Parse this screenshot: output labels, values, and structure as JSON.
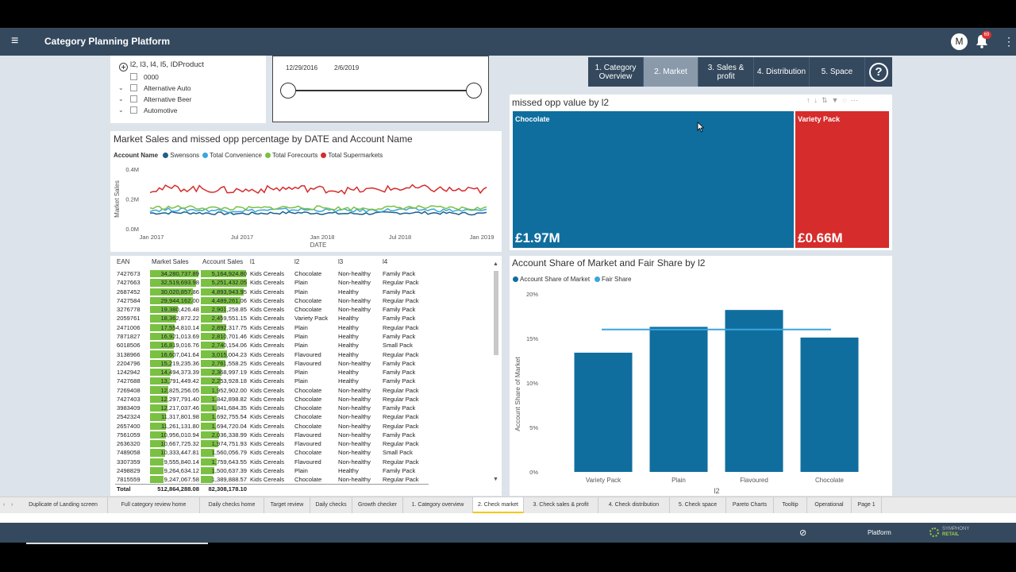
{
  "app": {
    "title": "Category Planning Platform",
    "avatar": "M",
    "notifications": "69"
  },
  "slicer_hierarchy": {
    "header": "l2, l3, l4, l5, IDProduct",
    "items": [
      "0000",
      "Alternative Auto",
      "Alternative Beer",
      "Automotive"
    ]
  },
  "slicer_date": {
    "start": "12/29/2016",
    "end": "2/6/2019"
  },
  "nav": {
    "buttons": [
      "1. Category Overview",
      "2. Market",
      "3. Sales & profit",
      "4. Distribution",
      "5. Space"
    ],
    "active": "2. Market",
    "help": "?"
  },
  "line_chart": {
    "title": "Market Sales and missed opp percentage by DATE and Account Name",
    "legend_title": "Account Name",
    "chart_data": {
      "type": "line",
      "xlabel": "DATE",
      "ylabel": "Market Sales",
      "x_ticks": [
        "Jan 2017",
        "Jul 2017",
        "Jan 2018",
        "Jul 2018",
        "Jan 2019"
      ],
      "y_ticks": [
        "0.4M",
        "0.2M",
        "0.0M"
      ],
      "ylim": [
        0,
        400000
      ],
      "series": [
        {
          "name": "Swensons",
          "color": "#1f5f8b",
          "approx_level": 105000
        },
        {
          "name": "Total Convenience",
          "color": "#3aa6dd",
          "approx_level": 125000
        },
        {
          "name": "Total Forecourts",
          "color": "#7ac143",
          "approx_level": 140000
        },
        {
          "name": "Total Supermarkets",
          "color": "#d62c2c",
          "approx_level": 265000
        }
      ]
    }
  },
  "treemap": {
    "title": "missed opp value by l2",
    "cells": [
      {
        "label": "Chocolate",
        "value": "£1.97M",
        "color": "#0f6e9e"
      },
      {
        "label": "Variety Pack",
        "value": "£0.66M",
        "color": "#d62c2c"
      }
    ]
  },
  "table": {
    "headers": [
      "EAN",
      "Market Sales",
      "Account Sales",
      "l1",
      "l2",
      "l3",
      "l4"
    ],
    "rows": [
      [
        "7427673",
        "34,280,737.89",
        "5,164,924.80",
        "Kids Cereals",
        "Chocolate",
        "Non-healthy",
        "Family Pack"
      ],
      [
        "7427663",
        "32,519,693.98",
        "5,251,432.05",
        "Kids Cereals",
        "Plain",
        "Non-healthy",
        "Regular Pack"
      ],
      [
        "2687452",
        "30,020,857.86",
        "4,893,943.95",
        "Kids Cereals",
        "Plain",
        "Healthy",
        "Family Pack"
      ],
      [
        "7427584",
        "29,944,162.00",
        "4,489,261.06",
        "Kids Cereals",
        "Chocolate",
        "Non-healthy",
        "Regular Pack"
      ],
      [
        "3276778",
        "19,380,426.48",
        "2,901,258.85",
        "Kids Cereals",
        "Chocolate",
        "Non-healthy",
        "Family Pack"
      ],
      [
        "2059761",
        "18,362,872.22",
        "2,459,551.15",
        "Kids Cereals",
        "Variety Pack",
        "Healthy",
        "Family Pack"
      ],
      [
        "2471006",
        "17,554,810.14",
        "2,892,317.75",
        "Kids Cereals",
        "Plain",
        "Healthy",
        "Regular Pack"
      ],
      [
        "7871827",
        "16,921,013.69",
        "2,810,701.46",
        "Kids Cereals",
        "Plain",
        "Healthy",
        "Family Pack"
      ],
      [
        "6018506",
        "16,819,016.76",
        "2,740,154.06",
        "Kids Cereals",
        "Plain",
        "Healthy",
        "Small Pack"
      ],
      [
        "3138966",
        "16,607,041.64",
        "3,015,004.23",
        "Kids Cereals",
        "Flavoured",
        "Healthy",
        "Regular Pack"
      ],
      [
        "2204796",
        "15,219,235.36",
        "2,761,558.25",
        "Kids Cereals",
        "Flavoured",
        "Non-healthy",
        "Family Pack"
      ],
      [
        "1242942",
        "14,494,373.39",
        "2,368,997.19",
        "Kids Cereals",
        "Plain",
        "Healthy",
        "Family Pack"
      ],
      [
        "7427688",
        "13,791,449.42",
        "2,253,928.18",
        "Kids Cereals",
        "Plain",
        "Healthy",
        "Family Pack"
      ],
      [
        "7269408",
        "12,825,256.05",
        "1,952,902.00",
        "Kids Cereals",
        "Chocolate",
        "Non-healthy",
        "Regular Pack"
      ],
      [
        "7427403",
        "12,297,791.40",
        "1,842,898.82",
        "Kids Cereals",
        "Chocolate",
        "Non-healthy",
        "Regular Pack"
      ],
      [
        "3983409",
        "12,217,037.46",
        "1,841,684.35",
        "Kids Cereals",
        "Chocolate",
        "Non-healthy",
        "Family Pack"
      ],
      [
        "2542324",
        "11,317,801.98",
        "1,692,755.54",
        "Kids Cereals",
        "Chocolate",
        "Non-healthy",
        "Regular Pack"
      ],
      [
        "2657400",
        "11,261,131.80",
        "1,694,720.04",
        "Kids Cereals",
        "Chocolate",
        "Non-healthy",
        "Regular Pack"
      ],
      [
        "7561059",
        "10,956,010.94",
        "2,036,338.99",
        "Kids Cereals",
        "Flavoured",
        "Non-healthy",
        "Family Pack"
      ],
      [
        "2636320",
        "10,667,725.32",
        "1,974,751.93",
        "Kids Cereals",
        "Flavoured",
        "Non-healthy",
        "Regular Pack"
      ],
      [
        "7489058",
        "10,333,447.81",
        "1,560,056.79",
        "Kids Cereals",
        "Chocolate",
        "Non-healthy",
        "Small Pack"
      ],
      [
        "3307359",
        "9,555,840.14",
        "1,759,643.55",
        "Kids Cereals",
        "Flavoured",
        "Non-healthy",
        "Regular Pack"
      ],
      [
        "2498829",
        "9,264,634.12",
        "1,500,637.39",
        "Kids Cereals",
        "Plain",
        "Healthy",
        "Family Pack"
      ],
      [
        "7815559",
        "9,247,067.58",
        "1,389,888.57",
        "Kids Cereals",
        "Chocolate",
        "Non-healthy",
        "Regular Pack"
      ]
    ],
    "totals": [
      "Total",
      "512,864,288.08",
      "82,308,178.10",
      "",
      "",
      "",
      ""
    ]
  },
  "bar_chart": {
    "title": "Account Share of Market and Fair Share by l2",
    "chart_data": {
      "type": "bar",
      "categories": [
        "Variety Pack",
        "Plain",
        "Flavoured",
        "Chocolate"
      ],
      "series": [
        {
          "name": "Account Share of Market",
          "color": "#0f6e9e",
          "values": [
            0.134,
            0.163,
            0.182,
            0.151
          ]
        },
        {
          "name": "Fair Share",
          "color": "#3aa6dd",
          "values": [
            0.16,
            0.16,
            0.16,
            0.16
          ]
        }
      ],
      "xlabel": "l2",
      "ylabel": "Account Share of Market",
      "y_ticks": [
        "20%",
        "15%",
        "10%",
        "5%",
        "0%"
      ],
      "ylim": [
        0,
        0.2
      ]
    }
  },
  "tabs": {
    "items": [
      "Duplicate of Landing screen",
      "Full category review home",
      "Daily checks home",
      "Target review",
      "Daily checks",
      "Growth checker",
      "1. Category overview",
      "2. Check market",
      "3. Check sales & profit",
      "4. Check distribution",
      "5. Check space",
      "Pareto Charts",
      "Tooltip",
      "Operational",
      "Page 1"
    ],
    "active": "2. Check market"
  },
  "statusbar": {
    "platform": "Platform",
    "logo_line1": "SYMPHONY",
    "logo_line2": "RETAIL"
  }
}
